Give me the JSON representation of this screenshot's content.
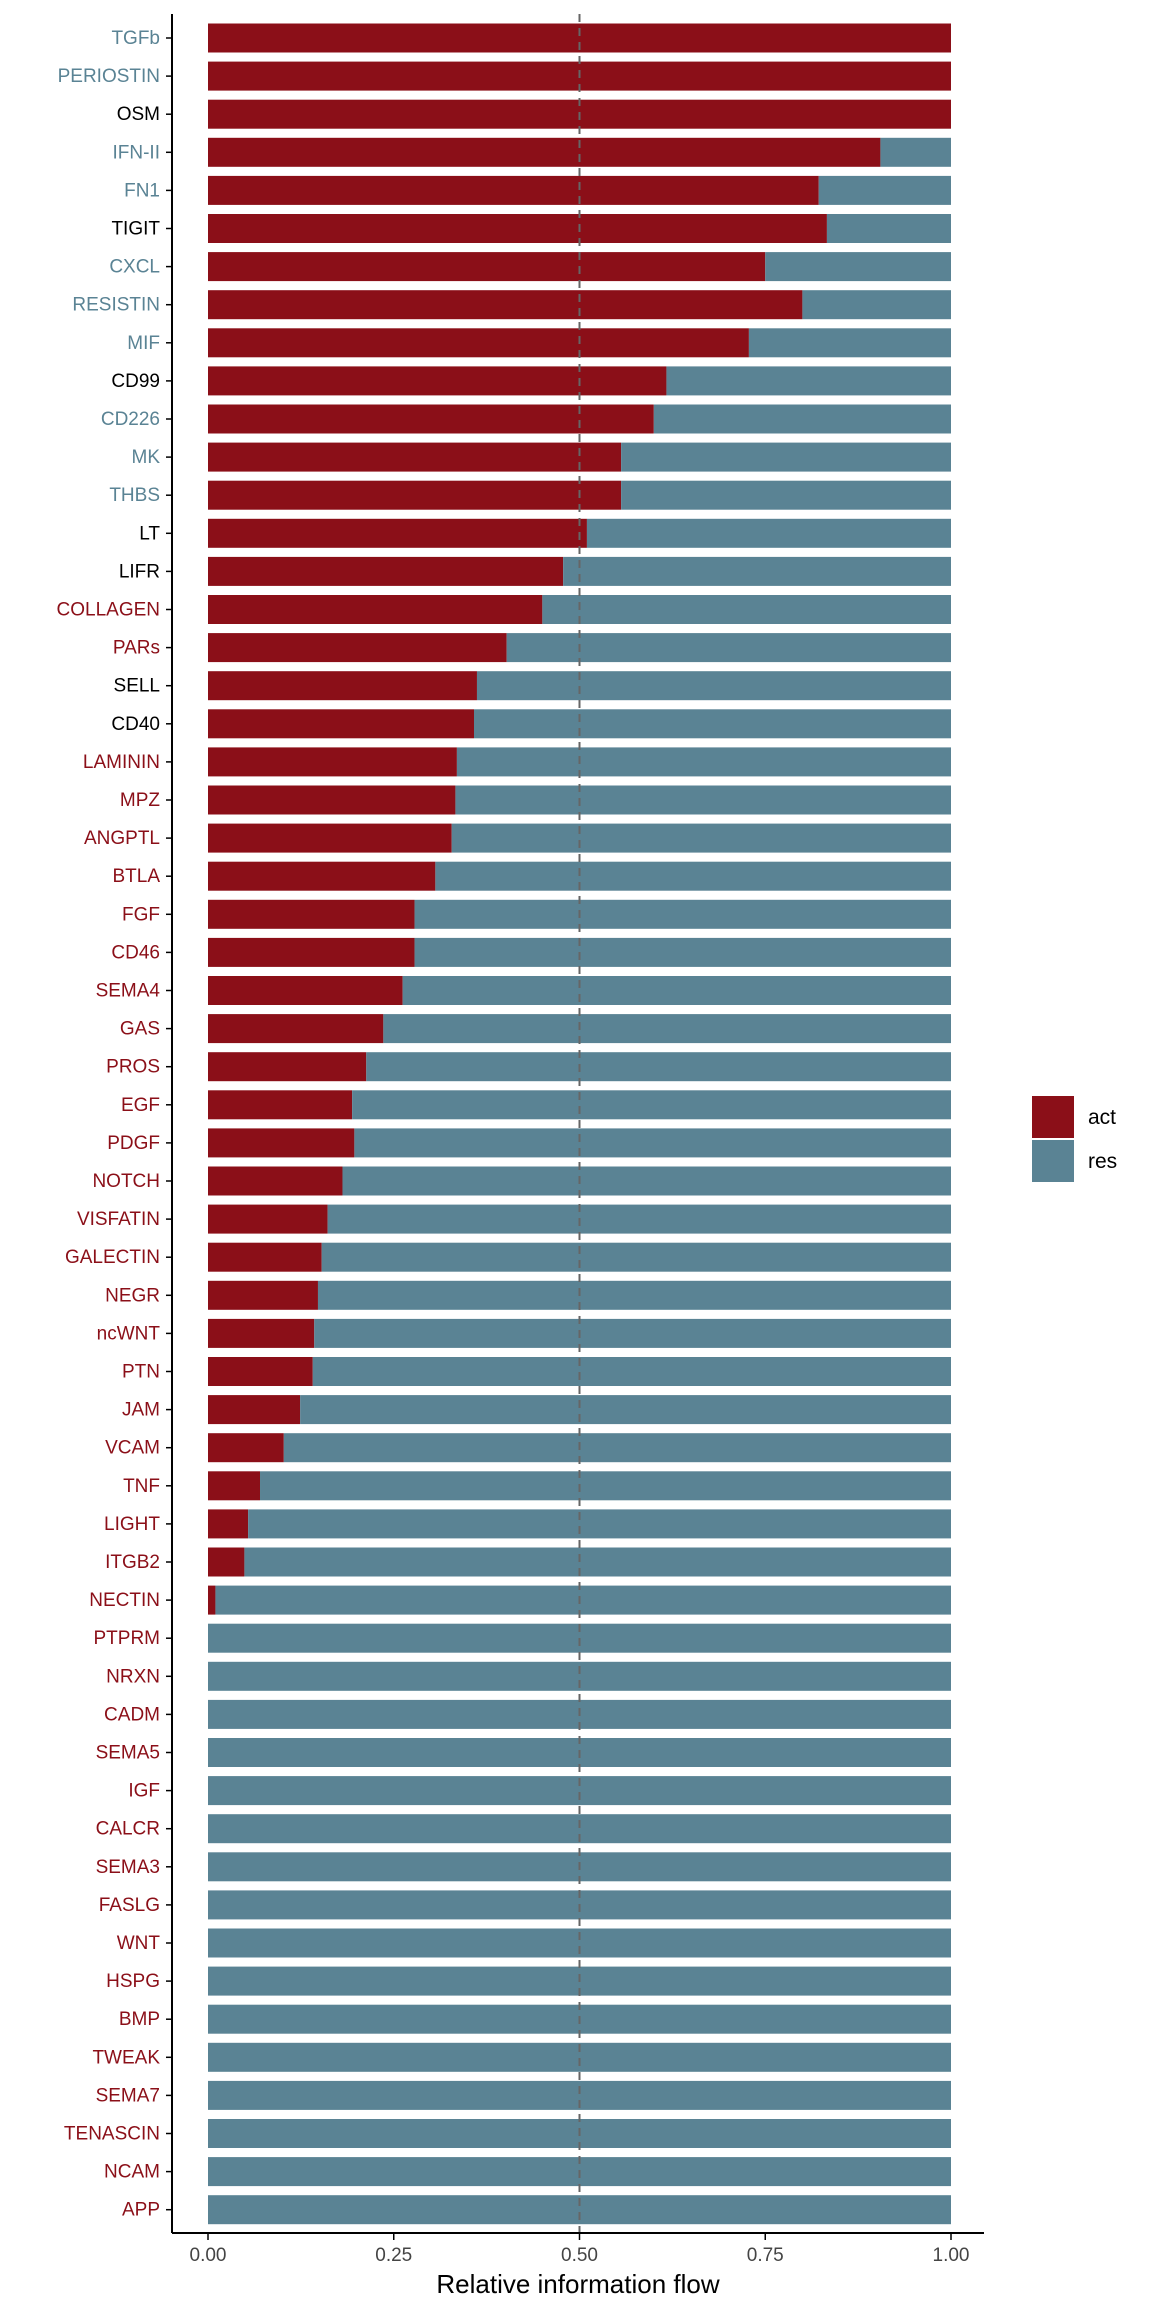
{
  "chart_data": {
    "type": "bar",
    "orientation": "horizontal",
    "stacked": true,
    "xlabel": "Relative information flow",
    "xlim": [
      0,
      1
    ],
    "x_ticks": [
      "0.00",
      "0.25",
      "0.50",
      "0.75",
      "1.00"
    ],
    "reference_line": 0.5,
    "grid": false,
    "legend_position": "right",
    "colors": {
      "act": "#8B0F18",
      "res": "#5A8394",
      "label_act": "#8B0F18",
      "label_res": "#5A8394",
      "label_neutral": "#000000"
    },
    "categories": [
      "TGFb",
      "PERIOSTIN",
      "OSM",
      "IFN-II",
      "FN1",
      "TIGIT",
      "CXCL",
      "RESISTIN",
      "MIF",
      "CD99",
      "CD226",
      "MK",
      "THBS",
      "LT",
      "LIFR",
      "COLLAGEN",
      "PARs",
      "SELL",
      "CD40",
      "LAMININ",
      "MPZ",
      "ANGPTL",
      "BTLA",
      "FGF",
      "CD46",
      "SEMA4",
      "GAS",
      "PROS",
      "EGF",
      "PDGF",
      "NOTCH",
      "VISFATIN",
      "GALECTIN",
      "NEGR",
      "ncWNT",
      "PTN",
      "JAM",
      "VCAM",
      "TNF",
      "LIGHT",
      "ITGB2",
      "NECTIN",
      "PTPRM",
      "NRXN",
      "CADM",
      "SEMA5",
      "IGF",
      "CALCR",
      "SEMA3",
      "FASLG",
      "WNT",
      "HSPG",
      "BMP",
      "TWEAK",
      "SEMA7",
      "TENASCIN",
      "NCAM",
      "APP"
    ],
    "label_groups": [
      "res",
      "res",
      "neutral",
      "res",
      "res",
      "neutral",
      "res",
      "res",
      "res",
      "neutral",
      "res",
      "res",
      "res",
      "neutral",
      "neutral",
      "act",
      "act",
      "neutral",
      "neutral",
      "act",
      "act",
      "act",
      "act",
      "act",
      "act",
      "act",
      "act",
      "act",
      "act",
      "act",
      "act",
      "act",
      "act",
      "act",
      "act",
      "act",
      "act",
      "act",
      "act",
      "act",
      "act",
      "act",
      "act",
      "act",
      "act",
      "act",
      "act",
      "act",
      "act",
      "act",
      "act",
      "act",
      "act",
      "act",
      "act",
      "act",
      "act",
      "act"
    ],
    "series": [
      {
        "name": "act",
        "values": [
          1.0,
          1.0,
          1.0,
          0.905,
          0.822,
          0.833,
          0.75,
          0.8,
          0.728,
          0.617,
          0.6,
          0.556,
          0.556,
          0.51,
          0.478,
          0.45,
          0.402,
          0.362,
          0.358,
          0.335,
          0.333,
          0.328,
          0.306,
          0.278,
          0.278,
          0.262,
          0.236,
          0.213,
          0.194,
          0.197,
          0.181,
          0.161,
          0.153,
          0.148,
          0.143,
          0.141,
          0.124,
          0.102,
          0.07,
          0.054,
          0.049,
          0.01,
          0,
          0,
          0,
          0,
          0,
          0,
          0,
          0,
          0,
          0,
          0,
          0,
          0,
          0,
          0,
          0
        ]
      },
      {
        "name": "res",
        "values": [
          0.0,
          0.0,
          0.0,
          0.095,
          0.178,
          0.167,
          0.25,
          0.2,
          0.272,
          0.383,
          0.4,
          0.444,
          0.444,
          0.49,
          0.522,
          0.55,
          0.598,
          0.638,
          0.642,
          0.665,
          0.667,
          0.672,
          0.694,
          0.722,
          0.722,
          0.738,
          0.764,
          0.787,
          0.806,
          0.803,
          0.819,
          0.839,
          0.847,
          0.852,
          0.857,
          0.859,
          0.876,
          0.898,
          0.93,
          0.946,
          0.951,
          0.99,
          1,
          1,
          1,
          1,
          1,
          1,
          1,
          1,
          1,
          1,
          1,
          1,
          1,
          1,
          1,
          1
        ]
      }
    ]
  }
}
